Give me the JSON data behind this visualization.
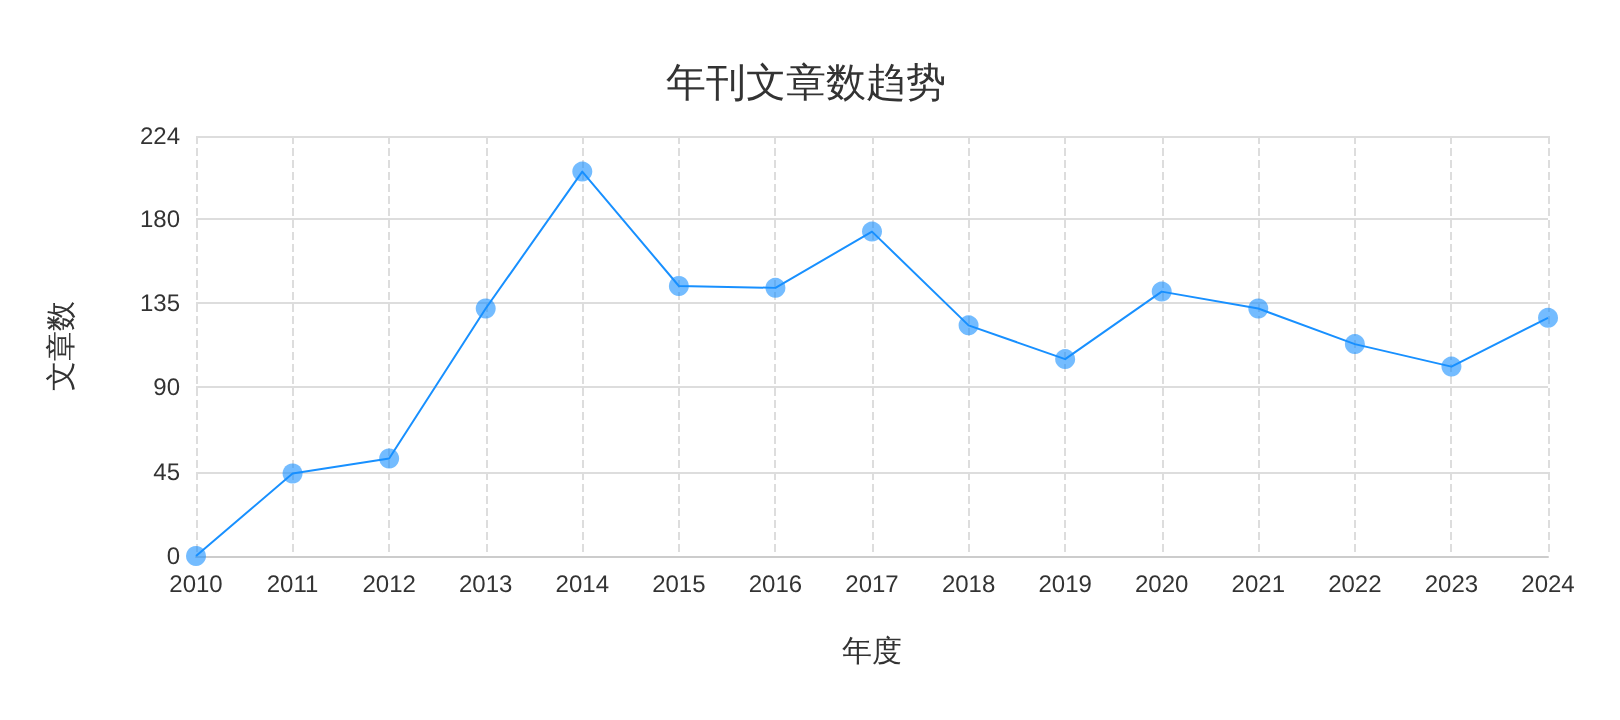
{
  "chart_data": {
    "type": "line",
    "title": "年刊文章数趋势",
    "xlabel": "年度",
    "ylabel": "文章数",
    "categories": [
      "2010",
      "2011",
      "2012",
      "2013",
      "2014",
      "2015",
      "2016",
      "2017",
      "2018",
      "2019",
      "2020",
      "2021",
      "2022",
      "2023",
      "2024"
    ],
    "series": [
      {
        "color": "#1890ff",
        "values": [
          0,
          44,
          52,
          132,
          205,
          144,
          143,
          173,
          123,
          105,
          141,
          132,
          113,
          101,
          127
        ]
      }
    ],
    "ylim": [
      0,
      224
    ],
    "yticks": [
      0,
      45,
      90,
      135,
      180,
      224
    ],
    "grid": true,
    "marker": "circle",
    "line_style": "solid"
  }
}
